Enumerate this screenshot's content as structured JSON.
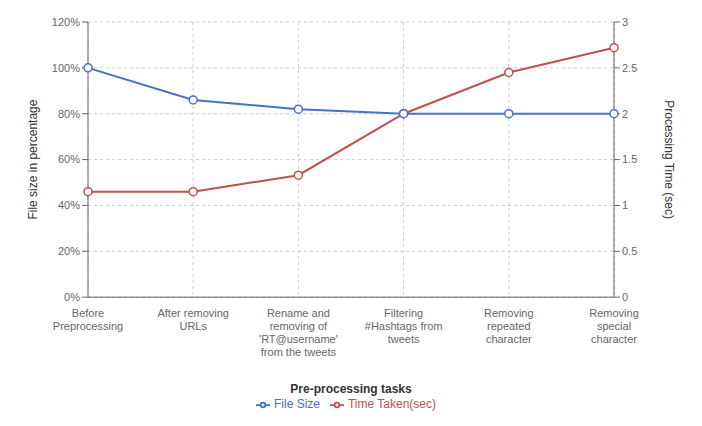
{
  "chart_data": {
    "type": "line",
    "categories": [
      "Before\nPreprocessing",
      "After removing\nURLs",
      "Rename and\nremoving of\n'RT@username'\nfrom the tweets",
      "Filtering\n#Hashtags from\ntweets",
      "Removing\nrepeated\ncharacter",
      "Removing\nspecial\ncharacter"
    ],
    "series": [
      {
        "name": "Time Taken(sec)",
        "color": "#C0504D",
        "values": [
          1.15,
          1.15,
          1.33,
          2.0,
          2.45,
          2.72
        ],
        "axis": "y2",
        "marker": "circle",
        "line_style": "solid"
      },
      {
        "name": "File Size",
        "color": "#4472C4",
        "values": [
          100,
          86,
          82,
          80,
          80,
          80
        ],
        "marker": "circle",
        "line_style": "solid"
      }
    ],
    "xlabel": "Pre-processing tasks",
    "ylabel": "File size in percentage",
    "y2label": "Processing Time (sec)",
    "ylim": [
      0,
      120
    ],
    "yticks": [
      {
        "value": 0,
        "label": "0%"
      },
      {
        "value": 20,
        "label": "20%"
      },
      {
        "value": 40,
        "label": "40%"
      },
      {
        "value": 60,
        "label": "60%"
      },
      {
        "value": 80,
        "label": "80%"
      },
      {
        "value": 100,
        "label": "100%"
      },
      {
        "value": 120,
        "label": "120%"
      }
    ],
    "y2lim": [
      0,
      3
    ],
    "y2ticks": [
      0,
      0.5,
      1,
      1.5,
      2,
      2.5,
      3
    ],
    "grid": true,
    "legend": "bottom"
  }
}
